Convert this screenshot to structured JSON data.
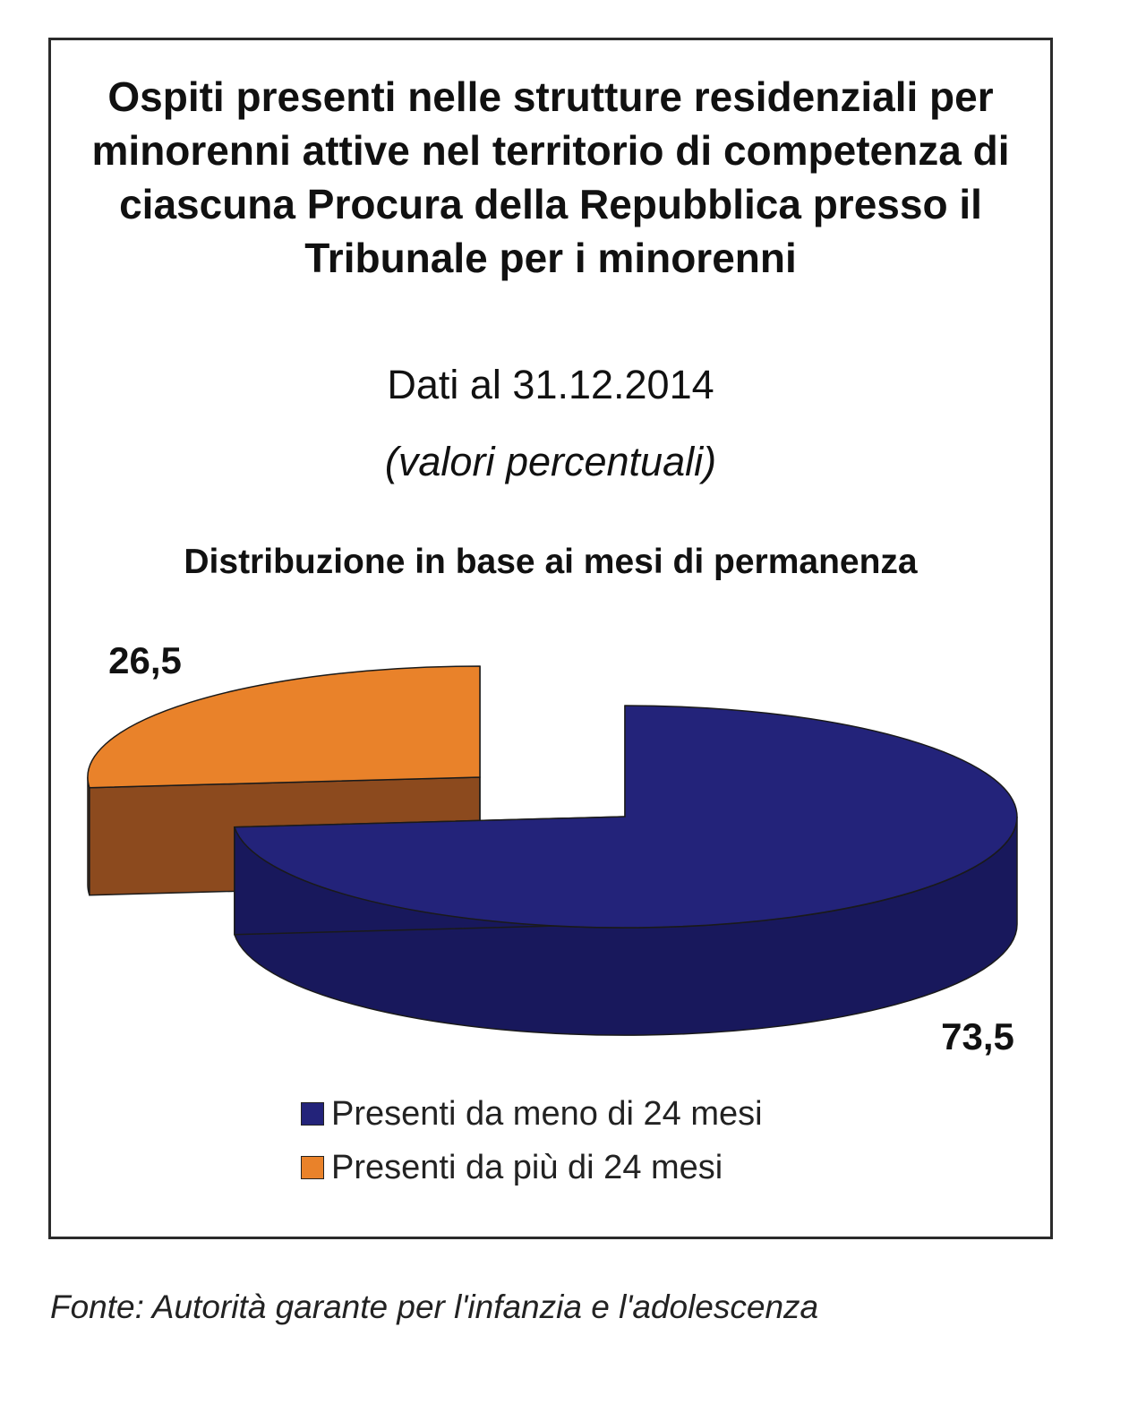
{
  "chart_data": {
    "type": "pie",
    "style": "3d-exploded",
    "title": "Ospiti presenti nelle strutture residenziali per minorenni attive nel territorio di competenza di ciascuna Procura della Repubblica presso il Tribunale per i minorenni",
    "subtitle": "Dati al 31.12.2014",
    "unit_note": "(valori percentuali)",
    "chart_title": "Distribuzione in base ai mesi di permanenza",
    "slices": [
      {
        "label": "Presenti da meno di 24 mesi",
        "value": 73.5,
        "display": "73,5",
        "color": "#23237a",
        "side_color": "#18185c"
      },
      {
        "label": "Presenti da più di 24 mesi",
        "value": 26.5,
        "display": "26,5",
        "color": "#e9822a",
        "side_color": "#8c4a1e"
      }
    ],
    "legend_position": "bottom"
  },
  "source": "Fonte: Autorità garante per l'infanzia e l'adolescenza"
}
